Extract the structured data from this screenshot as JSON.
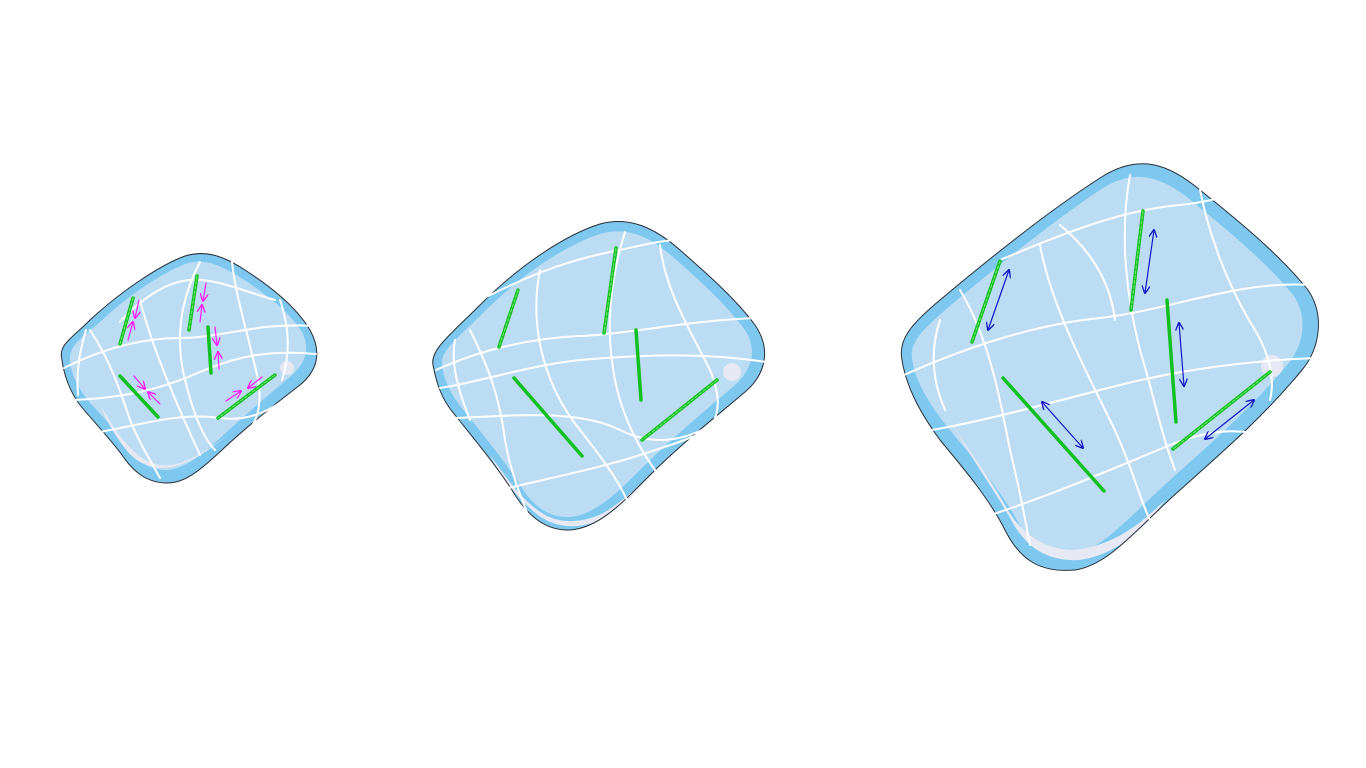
{
  "figure": {
    "panels": [
      {
        "id": "contracted",
        "fiber_count": 5,
        "arrow_type": "compression",
        "arrow_color": "#ff19ff"
      },
      {
        "id": "rest",
        "fiber_count": 5,
        "arrow_type": "none"
      },
      {
        "id": "stretched",
        "fiber_count": 5,
        "arrow_type": "extension",
        "arrow_color": "#1414c8"
      }
    ],
    "colors": {
      "cell_fill": "#bcdcf3",
      "cell_rim": "#7ec8f0",
      "mesh": "#ffffff",
      "fiber": "#10c020",
      "compression_arrow": "#ff19ff",
      "extension_arrow": "#1414c8"
    }
  }
}
